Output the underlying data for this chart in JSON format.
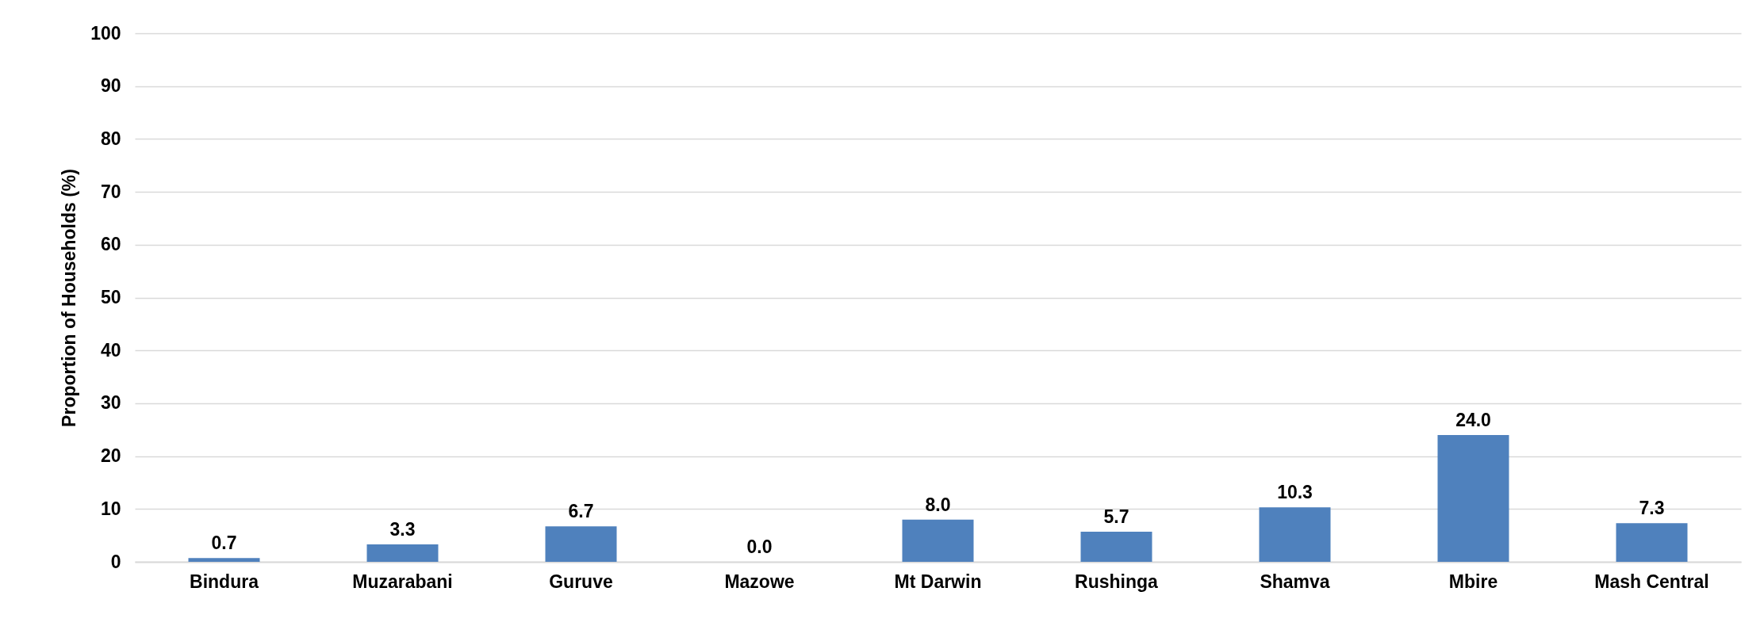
{
  "chart_data": {
    "type": "bar",
    "ylabel": "Proportion of Households (%)",
    "categories": [
      "Bindura",
      "Muzarabani",
      "Guruve",
      "Mazowe",
      "Mt Darwin",
      "Rushinga",
      "Shamva",
      "Mbire",
      "Mash Central"
    ],
    "values": [
      0.7,
      3.3,
      6.7,
      0.0,
      8.0,
      5.7,
      10.3,
      24.0,
      7.3
    ],
    "color": "#4f81bd",
    "ylim": [
      0,
      100
    ],
    "yticks": [
      0,
      10,
      20,
      30,
      40,
      50,
      60,
      70,
      80,
      90,
      100
    ],
    "value_labels": [
      "0.7",
      "3.3",
      "6.7",
      "0.0",
      "8.0",
      "5.7",
      "10.3",
      "24.0",
      "7.3"
    ],
    "grid": "y"
  }
}
